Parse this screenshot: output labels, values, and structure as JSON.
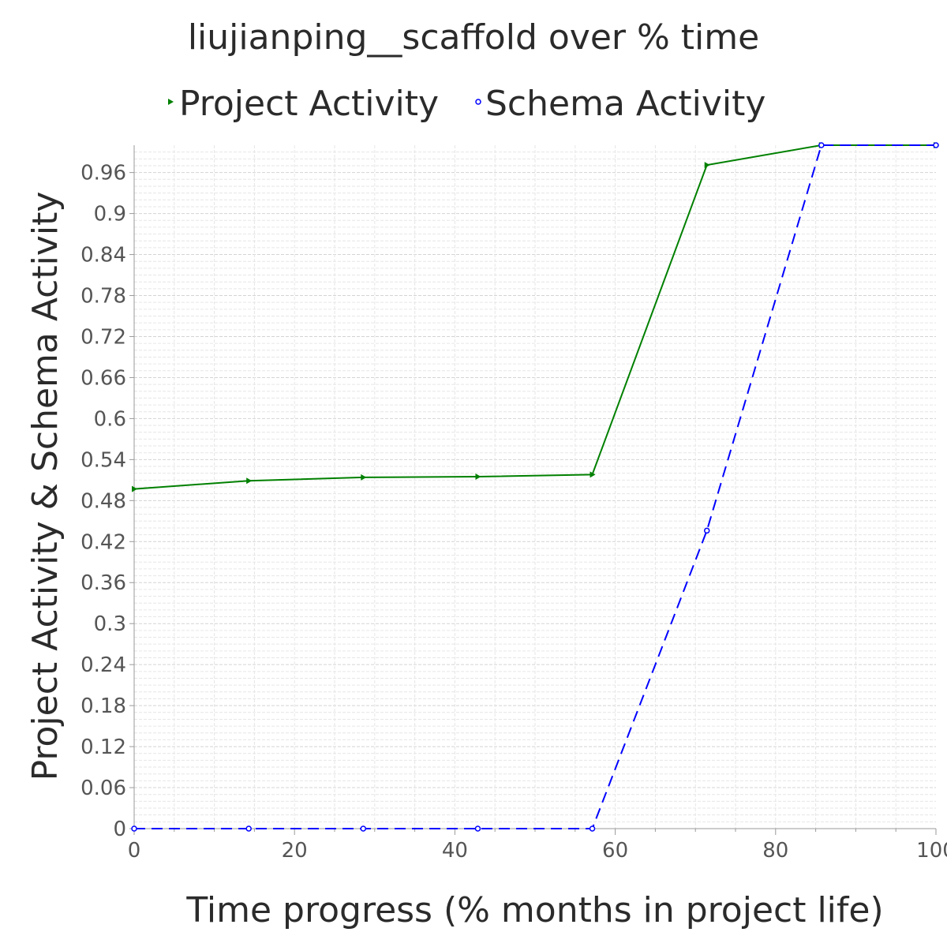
{
  "chart_data": {
    "type": "line",
    "title": "liujianping__scaffold over % time",
    "xlabel": "Time progress (% months in project life)",
    "ylabel": "Project Activity & Schema Activity",
    "xlim": [
      0,
      100
    ],
    "ylim": [
      0,
      1.0
    ],
    "x_ticks": [
      "0",
      "20",
      "40",
      "60",
      "80",
      "100"
    ],
    "y_ticks": [
      "0",
      "0.06",
      "0.12",
      "0.18",
      "0.24",
      "0.3",
      "0.36",
      "0.42",
      "0.48",
      "0.54",
      "0.6",
      "0.66",
      "0.72",
      "0.78",
      "0.84",
      "0.9",
      "0.96"
    ],
    "grid": true,
    "legend_position": "top",
    "series": [
      {
        "name": "Project Activity",
        "color": "#008000",
        "line_style": "solid",
        "marker": "triangle-right",
        "x": [
          0,
          14.29,
          28.57,
          42.86,
          57.14,
          71.43,
          85.71,
          100
        ],
        "y": [
          0.497,
          0.509,
          0.514,
          0.515,
          0.518,
          0.971,
          1.0,
          1.0
        ]
      },
      {
        "name": "Schema Activity",
        "color": "#0000ff",
        "line_style": "dashed",
        "marker": "circle",
        "x": [
          0,
          14.29,
          28.57,
          42.86,
          57.14,
          71.43,
          85.71,
          100
        ],
        "y": [
          0,
          0,
          0,
          0,
          0,
          0.436,
          1.0,
          1.0
        ]
      }
    ]
  }
}
